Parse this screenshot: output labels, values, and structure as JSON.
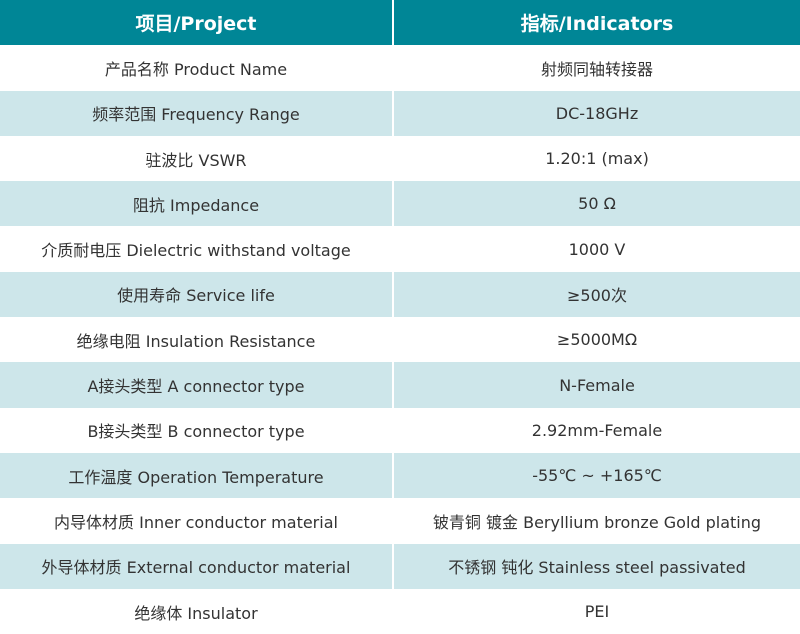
{
  "header": {
    "project": "项目/Project",
    "indicators": "指标/Indicators"
  },
  "colors": {
    "header_bg": "#008696",
    "alt_row_bg": "#cde6ea"
  },
  "rows": [
    {
      "project": "产品名称 Product Name",
      "value": "射频同轴转接器"
    },
    {
      "project": "频率范围 Frequency Range",
      "value": "DC-18GHz"
    },
    {
      "project": "驻波比 VSWR",
      "value": "1.20:1 (max)"
    },
    {
      "project": "阻抗 Impedance",
      "value": "50 Ω"
    },
    {
      "project": "介质耐电压 Dielectric withstand voltage",
      "value": "1000 V"
    },
    {
      "project": "使用寿命 Service life",
      "value": "≥500次"
    },
    {
      "project": "绝缘电阻 Insulation Resistance",
      "value": "≥5000MΩ"
    },
    {
      "project": "A接头类型 A connector type",
      "value": "N-Female"
    },
    {
      "project": "B接头类型 B connector type",
      "value": "2.92mm-Female"
    },
    {
      "project": "工作温度 Operation Temperature",
      "value": "-55℃ ~ +165℃"
    },
    {
      "project": "内导体材质 Inner conductor material",
      "value": "铍青铜 镀金 Beryllium bronze Gold plating"
    },
    {
      "project": "外导体材质 External conductor material",
      "value": "不锈钢 钝化 Stainless steel passivated"
    },
    {
      "project": "绝缘体 Insulator",
      "value": "PEI"
    }
  ]
}
